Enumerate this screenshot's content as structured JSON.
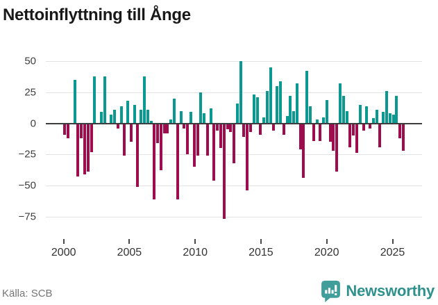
{
  "page": {
    "source": "Källa: SCB",
    "brand": "Newsworthy"
  },
  "chart_data": {
    "type": "bar",
    "title": "Nettoinflyttning till Ånge",
    "x_start": "2000-Q1",
    "x_frequency": "quarterly",
    "values": [
      -9,
      -12,
      0,
      35,
      -43,
      -12,
      -41,
      -39,
      -23,
      38,
      0,
      9,
      38,
      0,
      7,
      11,
      -4,
      14,
      -26,
      18,
      -15,
      15,
      -51,
      11,
      38,
      11,
      2,
      -61,
      -16,
      -38,
      -8,
      -8,
      3,
      20,
      -61,
      10,
      -4,
      -25,
      9,
      -35,
      -26,
      25,
      8,
      -26,
      12,
      -46,
      -6,
      -20,
      -77,
      -5,
      -7,
      -32,
      16,
      50,
      -11,
      -54,
      -7,
      23,
      21,
      -9,
      5,
      26,
      45,
      -6,
      30,
      34,
      -9,
      6,
      22,
      10,
      32,
      -21,
      -44,
      42,
      14,
      -14,
      3,
      -14,
      5,
      19,
      -15,
      -22,
      -39,
      32,
      22,
      10,
      -19,
      -10,
      -24,
      15,
      -6,
      14,
      -4,
      4,
      11,
      -19,
      9,
      26,
      8,
      7,
      22,
      -12,
      -22
    ],
    "yticks": [
      50,
      25,
      0,
      -25,
      -50,
      -75
    ],
    "xticks": [
      2000,
      2005,
      2010,
      2015,
      2020,
      2025
    ],
    "ylim": [
      -91,
      57
    ],
    "grid": true,
    "legend": false,
    "positive_color": "#099991",
    "negative_color": "#9d0d4d"
  }
}
